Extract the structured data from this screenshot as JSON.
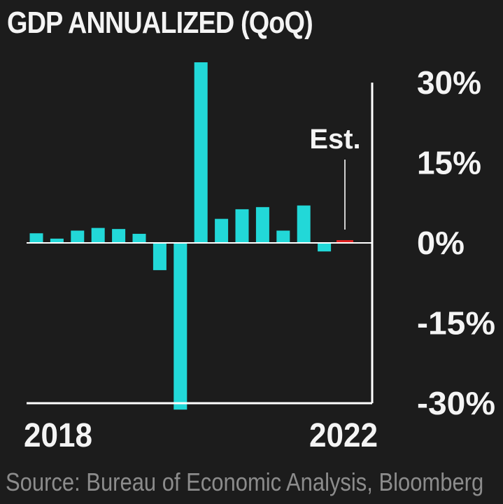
{
  "chart_data": {
    "type": "bar",
    "title": "GDP ANNUALIZED (QoQ)",
    "source": "Source: Bureau of Economic Analysis, Bloomberg",
    "x_tick_labels": [
      "2018",
      "2022"
    ],
    "y_ticks": [
      {
        "value": 30,
        "label": "30%"
      },
      {
        "value": 15,
        "label": "15%"
      },
      {
        "value": 0,
        "label": "0%"
      },
      {
        "value": -15,
        "label": "-15%"
      },
      {
        "value": -30,
        "label": "-30%"
      }
    ],
    "ylim": [
      -30,
      30
    ],
    "annotation": {
      "text": "Est.",
      "bar_index": 16
    },
    "colors": {
      "bar": "#22d8d8",
      "estimate": "#e02020",
      "background": "#1c1c1c",
      "axis": "#ffffff",
      "source": "#8c8c8c"
    },
    "values": [
      1.8,
      0.8,
      2.3,
      2.8,
      2.6,
      1.7,
      -5.1,
      -31.2,
      33.8,
      4.5,
      6.3,
      6.7,
      2.3,
      7.0,
      -1.6,
      0.6
    ],
    "estimated": [
      false,
      false,
      false,
      false,
      false,
      false,
      false,
      false,
      false,
      false,
      false,
      false,
      false,
      false,
      false,
      true
    ]
  }
}
